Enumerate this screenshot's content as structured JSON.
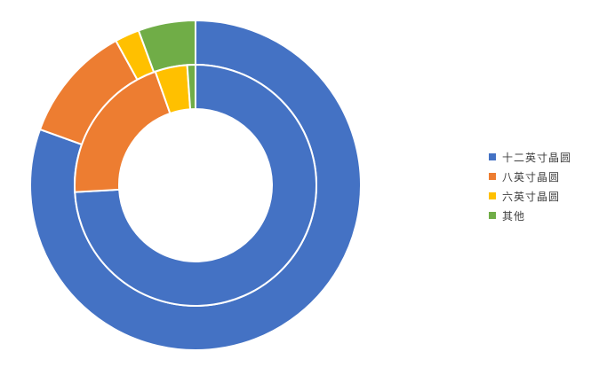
{
  "chart_data": {
    "type": "pie",
    "variant": "doughnut",
    "categories": [
      "十二英寸晶圆",
      "八英寸晶圆",
      "六英寸晶圆",
      "其他"
    ],
    "colors": [
      "#4472C4",
      "#ED7D31",
      "#FFC000",
      "#70AD47"
    ],
    "series": [
      {
        "ring": "outer",
        "values": [
          80.5,
          11.5,
          2.4,
          5.6
        ]
      },
      {
        "ring": "inner",
        "values": [
          74.1,
          20.5,
          4.3,
          1.1
        ]
      }
    ],
    "legend_position": "right"
  }
}
